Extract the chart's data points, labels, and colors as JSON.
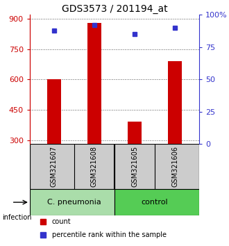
{
  "title": "GDS3573 / 201194_at",
  "samples": [
    "GSM321607",
    "GSM321608",
    "GSM321605",
    "GSM321606"
  ],
  "counts": [
    600,
    880,
    390,
    690
  ],
  "percentiles": [
    88,
    92,
    85,
    90
  ],
  "ylim_left": [
    280,
    920
  ],
  "ylim_right": [
    0,
    100
  ],
  "yticks_left": [
    300,
    450,
    600,
    750,
    900
  ],
  "yticks_right": [
    0,
    25,
    50,
    75,
    100
  ],
  "bar_color": "#cc0000",
  "dot_color": "#3333cc",
  "group_labels": [
    "C. pneumonia",
    "control"
  ],
  "cpneumonia_color": "#aaddaa",
  "control_color": "#55cc55",
  "infection_label": "infection",
  "legend_count": "count",
  "legend_percentile": "percentile rank within the sample",
  "bar_width": 0.35,
  "x_positions": [
    0,
    1,
    2,
    3
  ],
  "dotted_line_color": "#555555",
  "sample_bg_color": "#cccccc",
  "title_fontsize": 10,
  "tick_fontsize": 8,
  "sample_fontsize": 7,
  "group_fontsize": 8
}
